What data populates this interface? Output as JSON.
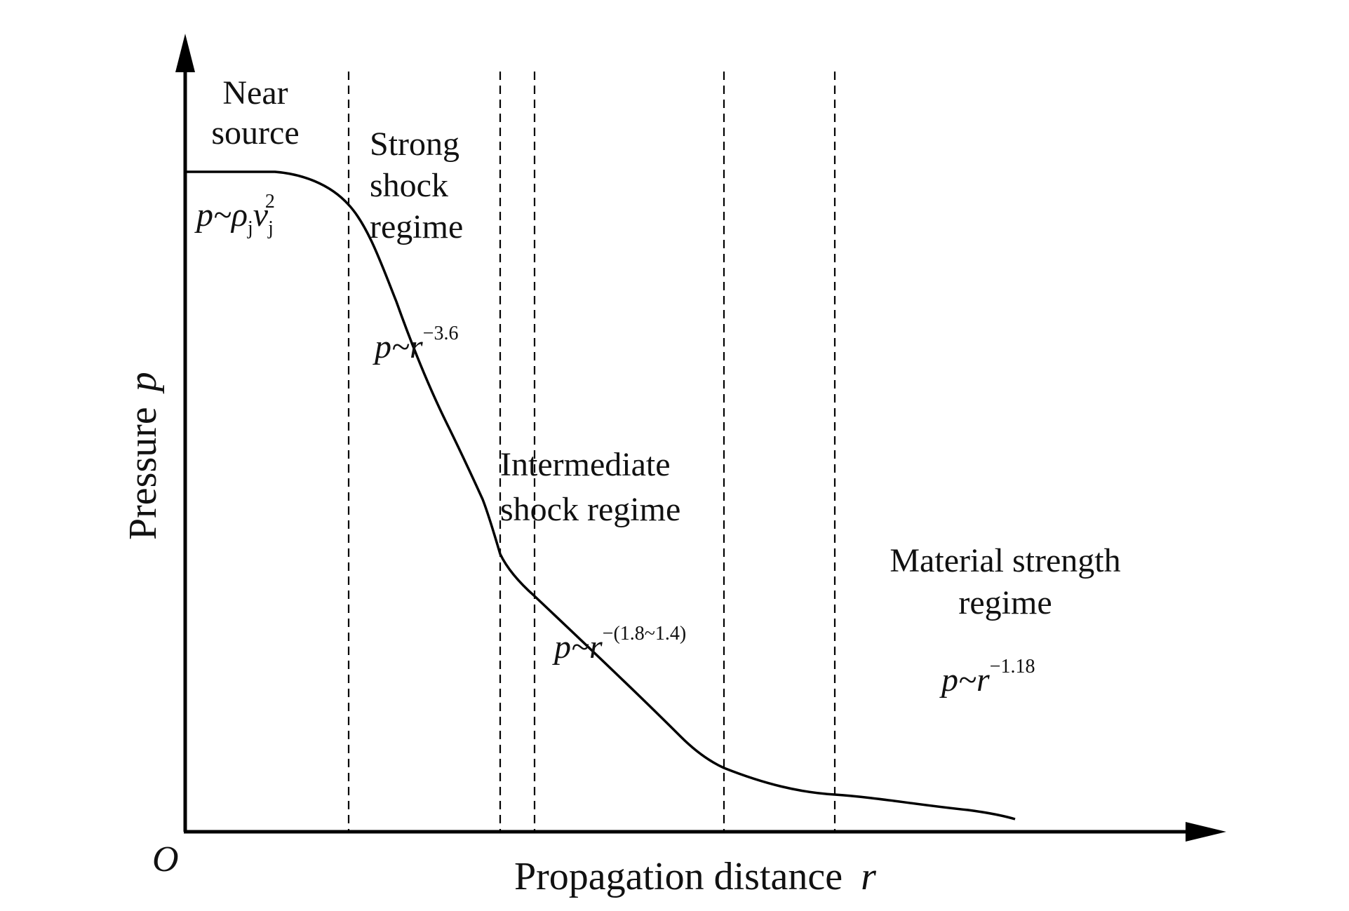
{
  "figure": {
    "origin_label": "O",
    "x_axis_label": "Propagation distance",
    "x_axis_symbol": "r",
    "y_axis_label": "Pressure",
    "y_axis_symbol": "p"
  },
  "regions": [
    {
      "label_lines": [
        "Near",
        "source"
      ],
      "formula": {
        "base": "p~ρ",
        "sub1": "j",
        "mid": "v",
        "sub2": "j",
        "sup": "2"
      }
    },
    {
      "label_lines": [
        "Strong",
        "shock",
        "regime"
      ],
      "formula": {
        "base": "p~r",
        "sup": "−3.6"
      }
    },
    {
      "label_lines": [
        "Intermediate",
        "shock regime"
      ],
      "formula": {
        "base": "p~r",
        "sup": "−(1.8~1.4)"
      }
    },
    {
      "label_lines": [
        "Material strength",
        "regime"
      ],
      "formula": {
        "base": "p~r",
        "sup": "−1.18"
      }
    }
  ],
  "colors": {
    "line": "#000000",
    "background": "#ffffff"
  }
}
